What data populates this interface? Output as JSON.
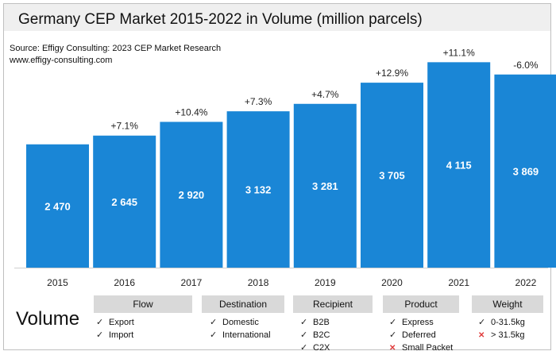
{
  "header": {
    "title": "Germany CEP Market 2015-2022 in Volume (million parcels)",
    "source": "Source: Effigy Consulting: 2023 CEP Market Research",
    "website": "www.effigy-consulting.com"
  },
  "chart_data": {
    "type": "bar",
    "title": "Germany CEP Market 2015-2022 in Volume (million parcels)",
    "categories": [
      "2015",
      "2016",
      "2017",
      "2018",
      "2019",
      "2020",
      "2021",
      "2022"
    ],
    "values": [
      2470,
      2645,
      2920,
      3132,
      3281,
      3705,
      4115,
      3869
    ],
    "value_labels": [
      "2 470",
      "2 645",
      "2 920",
      "3 132",
      "3 281",
      "3 705",
      "4 115",
      "3 869"
    ],
    "growth_labels": [
      "",
      "+7.1%",
      "+10.4%",
      "+7.3%",
      "+4.7%",
      "+12.9%",
      "+11.1%",
      "-6.0%"
    ],
    "ylim": [
      0,
      4200
    ],
    "bar_color": "#1a86d6",
    "grid": false
  },
  "legend": {
    "volume_label": "Volume",
    "categories": [
      {
        "head": "Flow",
        "items": [
          {
            "mark": "check",
            "text": "Export"
          },
          {
            "mark": "check",
            "text": "Import"
          }
        ]
      },
      {
        "head": "Destination",
        "items": [
          {
            "mark": "check",
            "text": "Domestic"
          },
          {
            "mark": "check",
            "text": "International"
          }
        ]
      },
      {
        "head": "Recipient",
        "items": [
          {
            "mark": "check",
            "text": "B2B"
          },
          {
            "mark": "check",
            "text": "B2C"
          },
          {
            "mark": "check",
            "text": "C2X"
          }
        ]
      },
      {
        "head": "Product",
        "items": [
          {
            "mark": "check",
            "text": "Express"
          },
          {
            "mark": "check",
            "text": "Deferred"
          },
          {
            "mark": "cross",
            "text": "Small Packet"
          }
        ]
      },
      {
        "head": "Weight",
        "items": [
          {
            "mark": "check",
            "text": "0-31.5kg"
          },
          {
            "mark": "cross",
            "text": "> 31.5kg"
          }
        ]
      }
    ],
    "check_glyph": "✓",
    "cross_glyph": "✕"
  }
}
